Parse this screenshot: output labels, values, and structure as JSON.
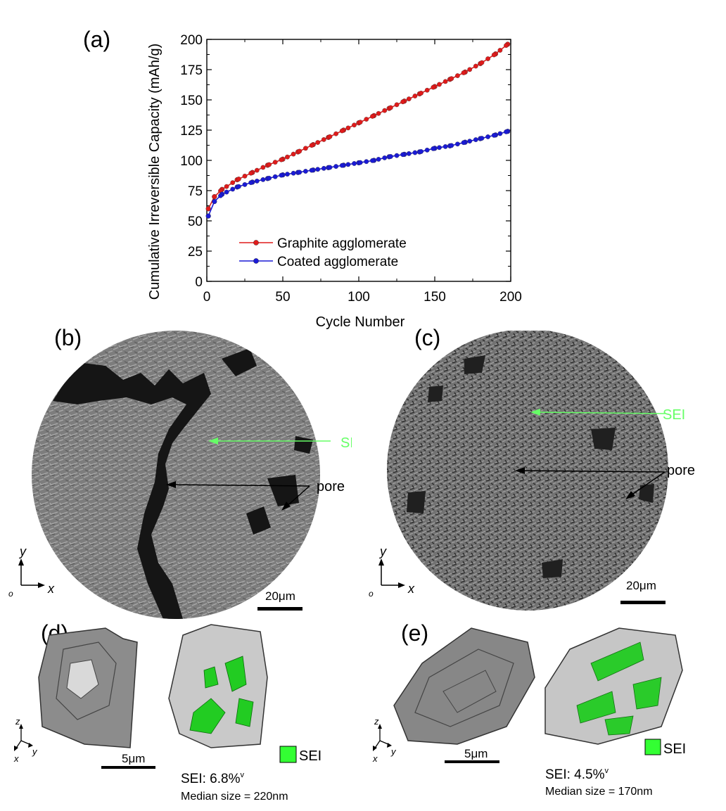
{
  "panels": {
    "a": "(a)",
    "b": "(b)",
    "c": "(c)",
    "d": "(d)",
    "e": "(e)"
  },
  "chart_data": {
    "type": "line",
    "xlabel": "Cycle Number",
    "ylabel": "Cumulative Irreversible Capacity (mAh/g)",
    "xlim": [
      0,
      200
    ],
    "ylim": [
      0,
      200
    ],
    "xticks": [
      "0",
      "50",
      "100",
      "150",
      "200"
    ],
    "yticks": [
      "0",
      "25",
      "50",
      "75",
      "100",
      "125",
      "150",
      "175",
      "200"
    ],
    "legend_position": "bottom-left",
    "grid": false,
    "series": [
      {
        "name": "Graphite agglomerate",
        "color": "#e01b1b",
        "x": [
          1,
          5,
          10,
          20,
          30,
          40,
          50,
          60,
          70,
          80,
          90,
          100,
          110,
          120,
          130,
          140,
          150,
          160,
          170,
          180,
          190,
          198
        ],
        "y": [
          60,
          70,
          76,
          84,
          90,
          96,
          101,
          107,
          113,
          119,
          125,
          131,
          137,
          143,
          149,
          155,
          161,
          167,
          173,
          180,
          188,
          196
        ]
      },
      {
        "name": "Coated agglomerate",
        "color": "#1a1ad6",
        "x": [
          1,
          5,
          10,
          20,
          30,
          40,
          50,
          60,
          70,
          80,
          90,
          100,
          110,
          120,
          130,
          140,
          150,
          160,
          170,
          180,
          190,
          198
        ],
        "y": [
          54,
          66,
          72,
          78,
          82,
          85,
          88,
          90,
          92,
          94,
          96,
          98,
          100,
          103,
          105,
          107,
          110,
          112,
          115,
          118,
          121,
          124
        ]
      }
    ]
  },
  "micro_b": {
    "sei": "SEI",
    "pore": "pore",
    "scale": "20μm",
    "axis_x": "x",
    "axis_y": "y",
    "origin": "o"
  },
  "micro_c": {
    "sei": "SEI",
    "pore": "pore",
    "scale": "20μm",
    "axis_x": "x",
    "axis_y": "y",
    "origin": "o"
  },
  "render_d": {
    "scale": "5μm",
    "legend": "SEI",
    "sei_fraction": "SEI: 6.8%",
    "sei_sup": "v",
    "median": "Median size = 220nm",
    "axis_z": "z",
    "axis_x": "x",
    "axis_y": "y"
  },
  "render_e": {
    "scale": "5μm",
    "legend": "SEI",
    "sei_fraction": "SEI: 4.5%",
    "sei_sup": "v",
    "median": "Median size = 170nm",
    "axis_z": "z",
    "axis_x": "x",
    "axis_y": "y"
  }
}
